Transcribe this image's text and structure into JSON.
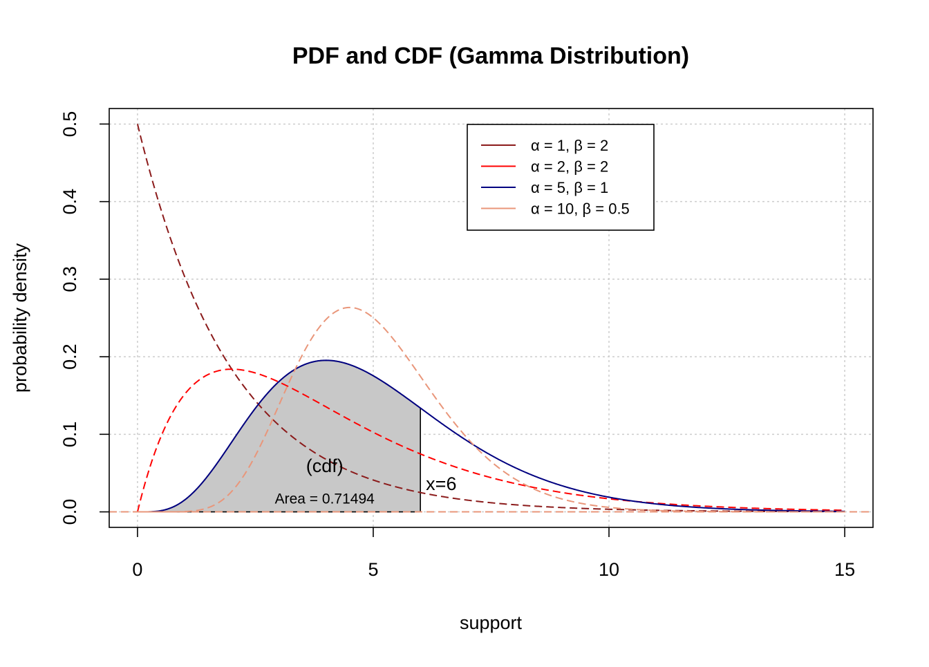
{
  "chart_data": {
    "type": "line",
    "title": "PDF and CDF (Gamma Distribution)",
    "xlabel": "support",
    "ylabel": "probability density",
    "xlim": [
      -0.6,
      15.6
    ],
    "ylim": [
      -0.02,
      0.52
    ],
    "x_ticks": [
      0,
      5,
      10,
      15
    ],
    "x_tick_labels": [
      "0",
      "5",
      "10",
      "15"
    ],
    "y_ticks": [
      0.0,
      0.1,
      0.2,
      0.3,
      0.4,
      0.5
    ],
    "y_tick_labels": [
      "0.0",
      "0.1",
      "0.2",
      "0.3",
      "0.4",
      "0.5"
    ],
    "grid": true,
    "legend_position": "top-right",
    "x_range": [
      0,
      15
    ],
    "series": [
      {
        "name": "α = 1, β = 2",
        "alpha": 1,
        "beta": 2,
        "color": "#8B1A1A",
        "dash": "dashed",
        "distribution": "gamma-pdf"
      },
      {
        "name": "α = 2, β = 2",
        "alpha": 2,
        "beta": 2,
        "color": "#FF0000",
        "dash": "dashed",
        "distribution": "gamma-pdf"
      },
      {
        "name": "α = 5, β = 1",
        "alpha": 5,
        "beta": 1,
        "color": "#000080",
        "dash": "solid",
        "distribution": "gamma-pdf"
      },
      {
        "name": "α = 10, β = 0.5",
        "alpha": 10,
        "beta": 0.5,
        "color": "#E9967A",
        "dash": "dashed",
        "distribution": "gamma-pdf"
      }
    ],
    "shaded_area": {
      "series_index": 2,
      "from": 0,
      "to": 6,
      "fill": "#C8C8C8",
      "area_label": "Area = 0.71494",
      "cdf_label": "(cdf)",
      "x_label": "x=6",
      "area_value": 0.71494
    }
  }
}
